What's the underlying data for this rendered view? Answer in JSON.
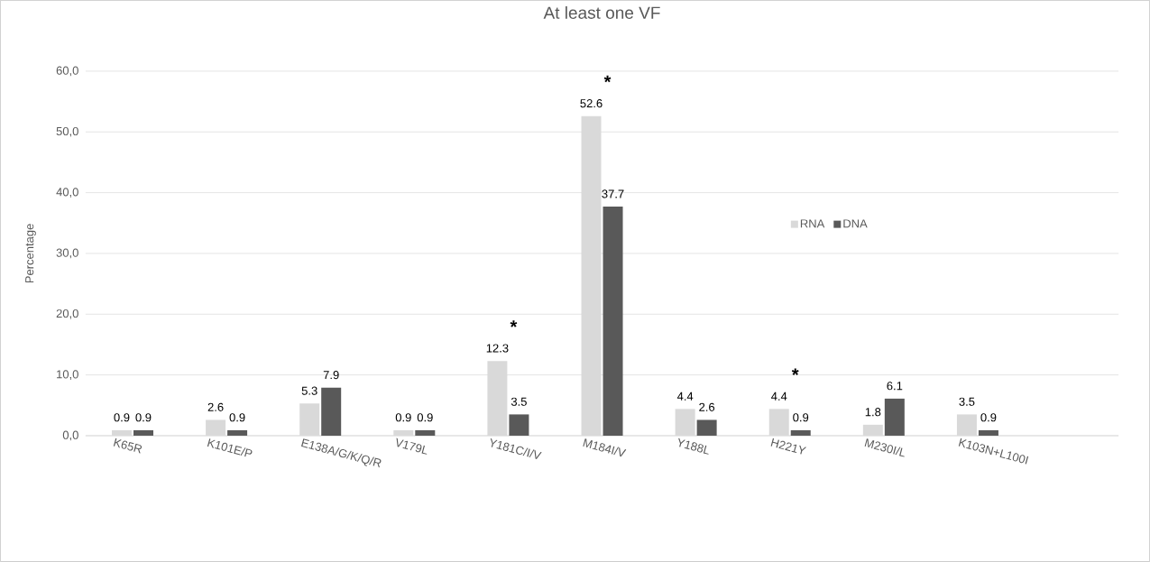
{
  "chart_data": {
    "type": "bar",
    "title": "At least one VF",
    "ylabel": "Percentage",
    "categories": [
      "K65R",
      "K101E/P",
      "E138A/G/K/Q/R",
      "V179L",
      "Y181C/I/V",
      "M184I/V",
      "Y188L",
      "H221Y",
      "M230I/L",
      "K103N+L100I",
      null
    ],
    "series": [
      {
        "name": "RNA",
        "color": "#d9d9d9",
        "values": [
          0.9,
          2.6,
          5.3,
          0.9,
          12.3,
          52.6,
          4.4,
          4.4,
          1.8,
          3.5,
          null
        ]
      },
      {
        "name": "DNA",
        "color": "#595959",
        "values": [
          0.9,
          0.9,
          7.9,
          0.9,
          3.5,
          37.7,
          2.6,
          0.9,
          6.1,
          0.9,
          null
        ]
      }
    ],
    "ylim": [
      0,
      60
    ],
    "yticks": [
      {
        "value": 0,
        "label": "0,0"
      },
      {
        "value": 10,
        "label": "10,0"
      },
      {
        "value": 20,
        "label": "20,0"
      },
      {
        "value": 30,
        "label": "30,0"
      },
      {
        "value": 40,
        "label": "40,0"
      },
      {
        "value": 50,
        "label": "50,0"
      },
      {
        "value": 60,
        "label": "60,0"
      }
    ],
    "grid": "y",
    "legend": "right",
    "data_labels": true,
    "annotations": [
      {
        "text": "*",
        "x": "Y181C/I/V",
        "y": 12.3
      },
      {
        "text": "*",
        "x": "M184I/V",
        "y": 52.6
      },
      {
        "text": "*",
        "x": "H221Y",
        "y": 4.4
      }
    ]
  }
}
